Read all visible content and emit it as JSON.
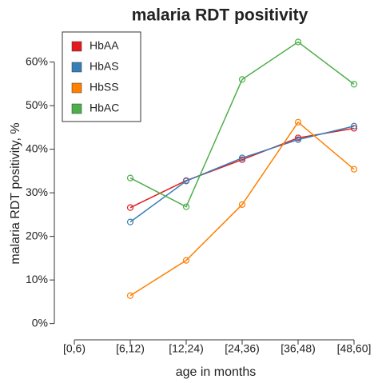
{
  "chart_data": {
    "type": "line",
    "title": "malaria RDT positivity",
    "x_label": "age in months",
    "y_label": "malaria RDT positivity, %",
    "categories": [
      "[0,6)",
      "[6,12)",
      "[12,24)",
      "[24,36)",
      "[36,48)",
      "[48,60]"
    ],
    "series": [
      {
        "name": "HbAA",
        "color": "#e41a1c",
        "values": [
          null,
          26.6,
          32.8,
          37.6,
          42.6,
          44.8
        ]
      },
      {
        "name": "HbAS",
        "color": "#377eb8",
        "values": [
          null,
          23.3,
          32.7,
          38.0,
          42.2,
          45.3
        ]
      },
      {
        "name": "HbSS",
        "color": "#ff7f00",
        "values": [
          null,
          6.4,
          14.5,
          27.3,
          46.2,
          35.4
        ]
      },
      {
        "name": "HbAC",
        "color": "#4daf4a",
        "values": [
          null,
          33.4,
          26.8,
          56.0,
          64.6,
          54.9
        ]
      }
    ],
    "ylim": [
      -3,
      68
    ],
    "yticks": [
      {
        "value": 0,
        "label": "0%"
      },
      {
        "value": 10,
        "label": "10%"
      },
      {
        "value": 20,
        "label": "20%"
      },
      {
        "value": 30,
        "label": "30%"
      },
      {
        "value": 40,
        "label": "40%"
      },
      {
        "value": 50,
        "label": "50%"
      },
      {
        "value": 60,
        "label": "60%"
      }
    ],
    "legend": "top-left"
  }
}
